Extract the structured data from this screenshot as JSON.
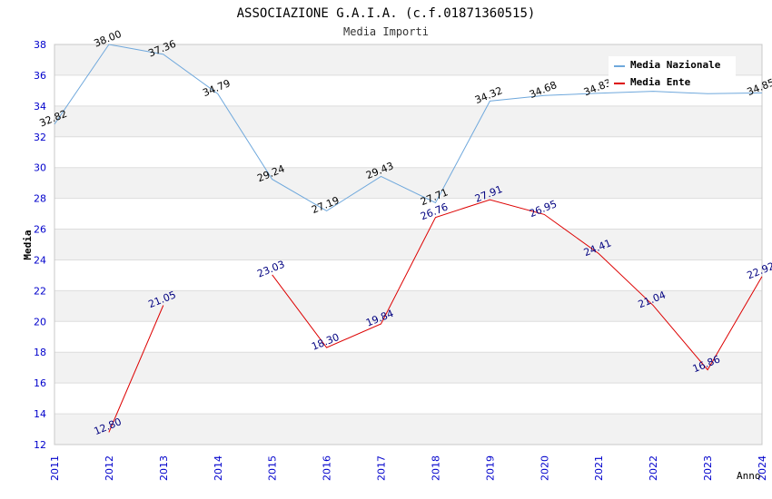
{
  "chart_data": {
    "type": "line",
    "title": "ASSOCIAZIONE G.A.I.A. (c.f.01871360515)",
    "subtitle": "Media Importi",
    "xlabel": "Anno",
    "ylabel": "Media",
    "categories": [
      "2011",
      "2012",
      "2013",
      "2014",
      "2015",
      "2016",
      "2017",
      "2018",
      "2019",
      "2020",
      "2021",
      "2022",
      "2023",
      "2024"
    ],
    "ylim": [
      12,
      38
    ],
    "yticks": [
      12,
      14,
      16,
      18,
      20,
      22,
      24,
      26,
      28,
      30,
      32,
      34,
      36,
      38
    ],
    "grid": true,
    "legend_position": "top-right",
    "series": [
      {
        "name": "Media Nazionale",
        "color": "#6fa8dc",
        "label_color": "#000000",
        "values": [
          32.82,
          38.0,
          37.36,
          34.79,
          29.24,
          27.19,
          29.43,
          27.71,
          34.32,
          34.68,
          34.83,
          34.96,
          34.8,
          34.85
        ],
        "labels": [
          "32.82",
          "38.00",
          "37.36",
          "34.79",
          "29.24",
          "27.19",
          "29.43",
          "27.71",
          "34.32",
          "34.68",
          "34.83",
          "",
          "",
          "34.85"
        ]
      },
      {
        "name": "Media Ente",
        "color": "#dd0000",
        "label_color": "#000080",
        "values": [
          null,
          12.8,
          21.05,
          null,
          23.03,
          18.3,
          19.84,
          26.76,
          27.91,
          26.95,
          24.41,
          21.04,
          16.86,
          22.92
        ],
        "labels": [
          "",
          "12.80",
          "21.05",
          "",
          "23.03",
          "18.30",
          "19.84",
          "26.76",
          "27.91",
          "26.95",
          "24.41",
          "21.04",
          "16.86",
          "22.92"
        ]
      }
    ]
  }
}
